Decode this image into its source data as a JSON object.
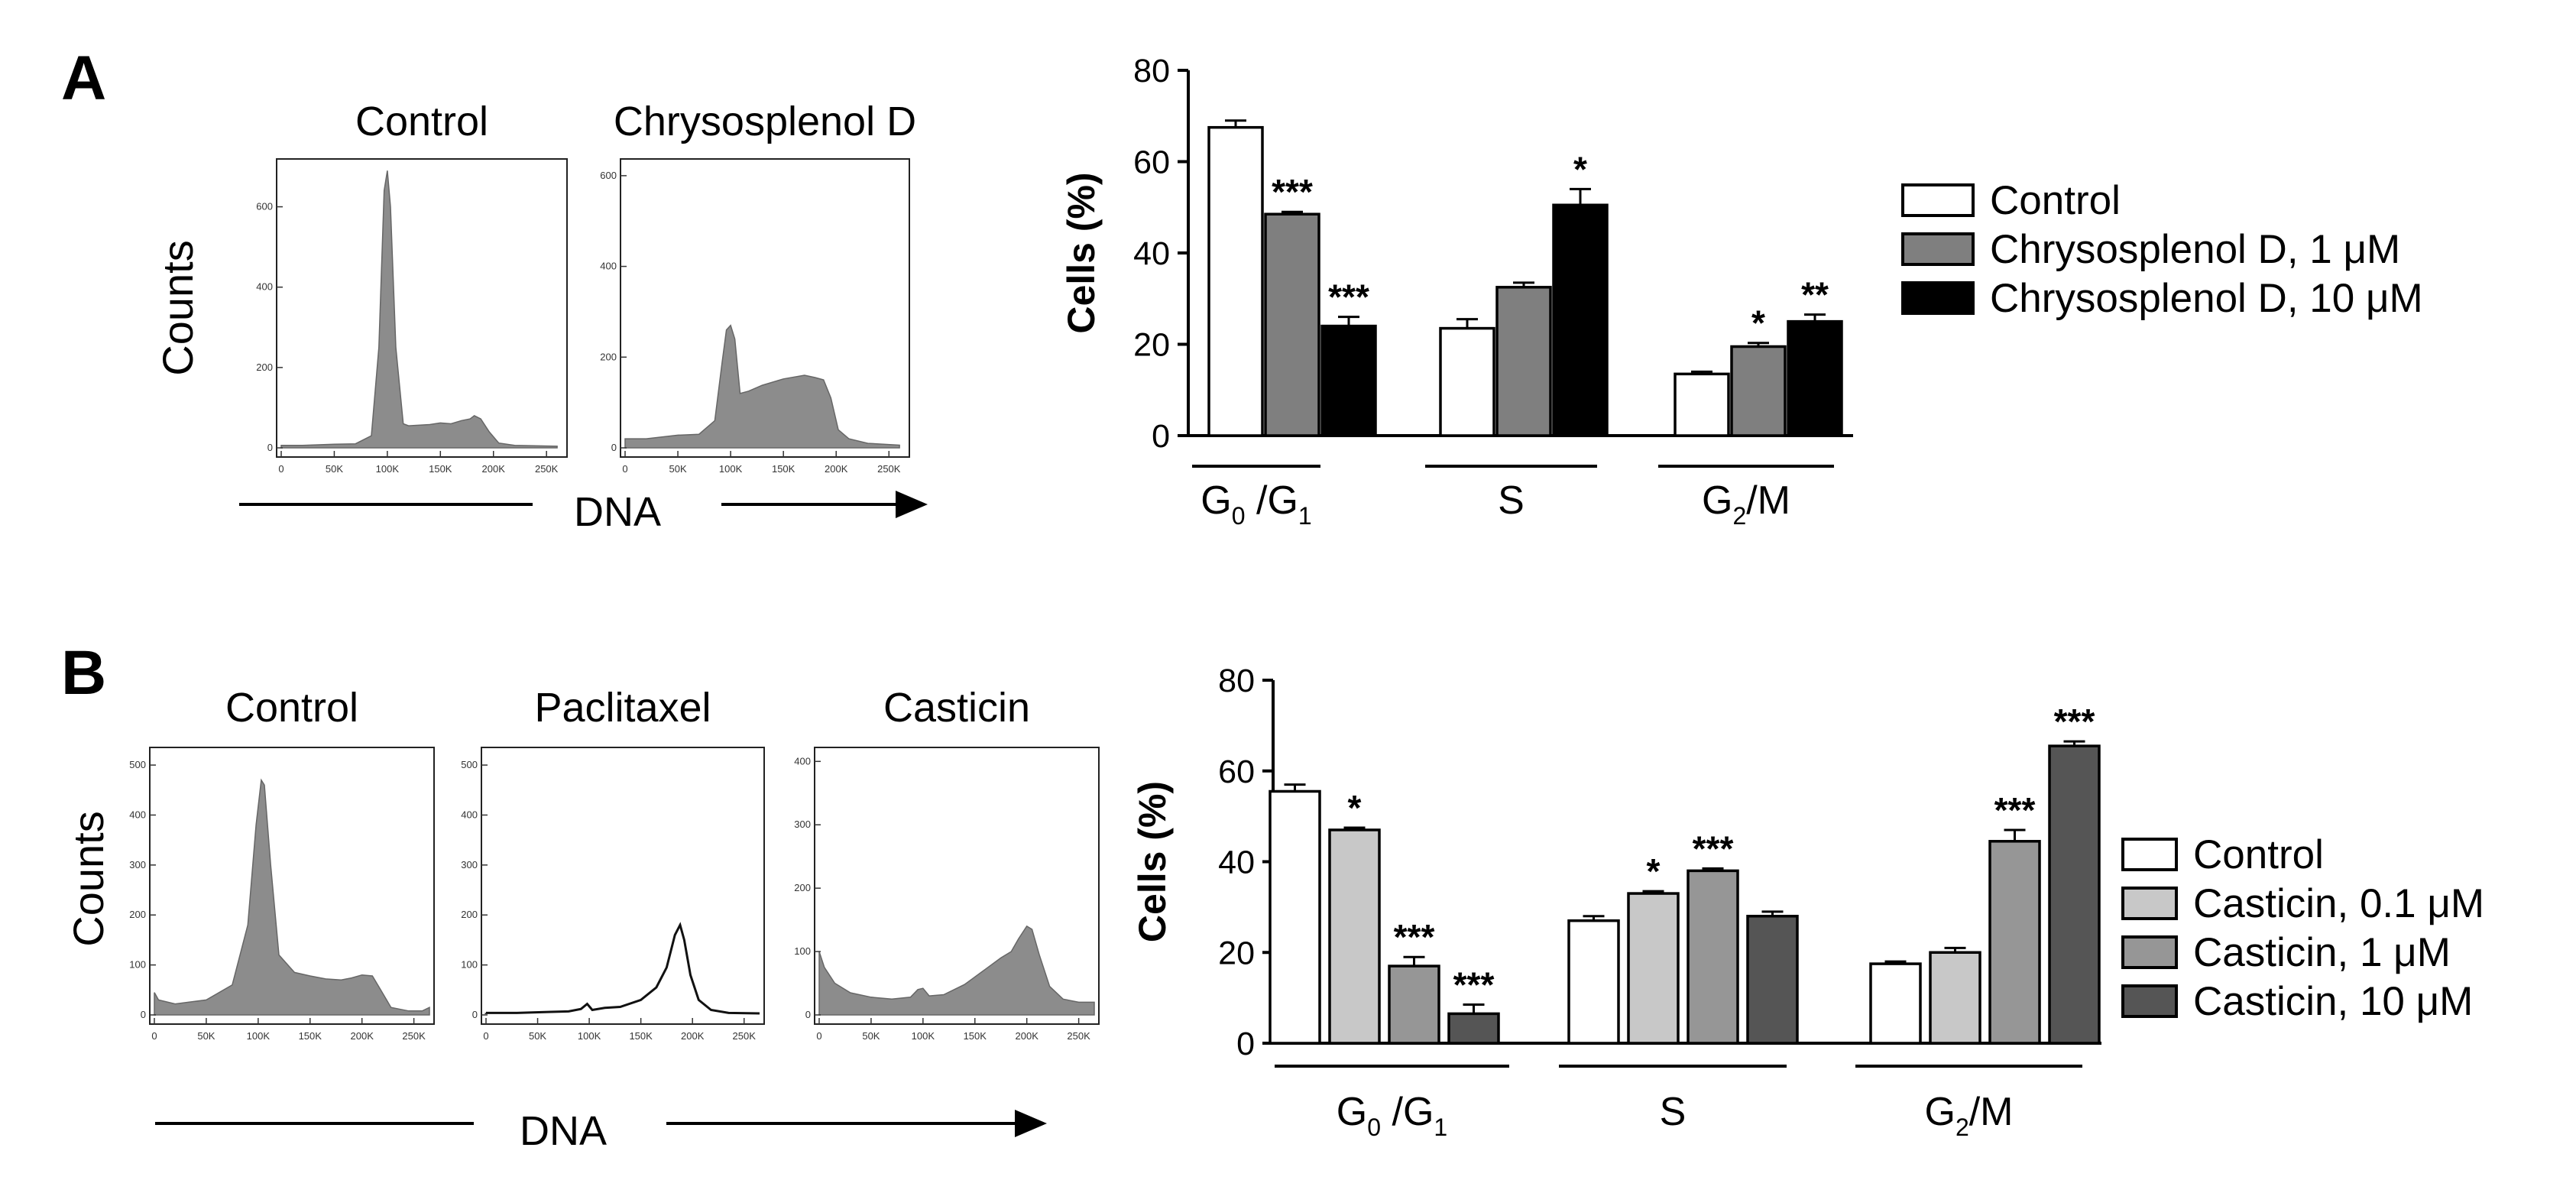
{
  "panels": [
    {
      "letter": "A"
    },
    {
      "letter": "B"
    }
  ],
  "histograms": [
    {
      "id": "A",
      "ylabel": "Counts",
      "xlabel": "DNA",
      "xticks": [
        "0",
        "50K",
        "100K",
        "150K",
        "200K",
        "250K"
      ],
      "plots": [
        {
          "title": "Control",
          "style": "filled",
          "ymax": 700,
          "yticks": [
            "0",
            "200",
            "400",
            "600"
          ],
          "profile": [
            [
              0,
              6
            ],
            [
              20,
              6
            ],
            [
              50,
              9
            ],
            [
              70,
              10
            ],
            [
              85,
              30
            ],
            [
              92,
              250
            ],
            [
              97,
              640
            ],
            [
              100,
              690
            ],
            [
              103,
              600
            ],
            [
              108,
              250
            ],
            [
              115,
              60
            ],
            [
              120,
              55
            ],
            [
              140,
              58
            ],
            [
              150,
              62
            ],
            [
              160,
              60
            ],
            [
              170,
              68
            ],
            [
              178,
              72
            ],
            [
              182,
              80
            ],
            [
              188,
              72
            ],
            [
              196,
              40
            ],
            [
              205,
              12
            ],
            [
              220,
              6
            ],
            [
              260,
              4
            ]
          ]
        },
        {
          "title": "Chrysosplenol D",
          "style": "filled",
          "ymax": 620,
          "yticks": [
            "0",
            "200",
            "400",
            "600"
          ],
          "profile": [
            [
              0,
              20
            ],
            [
              20,
              20
            ],
            [
              50,
              28
            ],
            [
              70,
              30
            ],
            [
              85,
              60
            ],
            [
              92,
              190
            ],
            [
              96,
              260
            ],
            [
              100,
              270
            ],
            [
              104,
              240
            ],
            [
              109,
              120
            ],
            [
              117,
              125
            ],
            [
              130,
              138
            ],
            [
              150,
              152
            ],
            [
              170,
              160
            ],
            [
              180,
              155
            ],
            [
              188,
              150
            ],
            [
              195,
              110
            ],
            [
              202,
              40
            ],
            [
              212,
              20
            ],
            [
              230,
              10
            ],
            [
              260,
              6
            ]
          ]
        }
      ]
    },
    {
      "id": "B",
      "ylabel": "Counts",
      "xlabel": "DNA",
      "xticks": [
        "0",
        "50K",
        "100K",
        "150K",
        "200K",
        "250K"
      ],
      "plots": [
        {
          "title": "Control",
          "style": "filled",
          "ymax": 520,
          "yticks": [
            "0",
            "100",
            "200",
            "300",
            "400",
            "500"
          ],
          "profile": [
            [
              0,
              45
            ],
            [
              4,
              30
            ],
            [
              20,
              22
            ],
            [
              50,
              30
            ],
            [
              75,
              60
            ],
            [
              90,
              180
            ],
            [
              98,
              380
            ],
            [
              103,
              470
            ],
            [
              106,
              460
            ],
            [
              112,
              300
            ],
            [
              120,
              120
            ],
            [
              135,
              85
            ],
            [
              150,
              78
            ],
            [
              165,
              72
            ],
            [
              180,
              70
            ],
            [
              190,
              74
            ],
            [
              200,
              80
            ],
            [
              210,
              78
            ],
            [
              218,
              50
            ],
            [
              228,
              15
            ],
            [
              245,
              8
            ],
            [
              258,
              8
            ],
            [
              265,
              15
            ]
          ]
        },
        {
          "title": "Paclitaxel",
          "style": "outline",
          "ymax": 520,
          "yticks": [
            "0",
            "100",
            "200",
            "300",
            "400",
            "500"
          ],
          "profile": [
            [
              0,
              4
            ],
            [
              30,
              4
            ],
            [
              60,
              6
            ],
            [
              80,
              7
            ],
            [
              92,
              12
            ],
            [
              98,
              22
            ],
            [
              103,
              10
            ],
            [
              115,
              14
            ],
            [
              130,
              16
            ],
            [
              150,
              30
            ],
            [
              165,
              55
            ],
            [
              175,
              95
            ],
            [
              183,
              160
            ],
            [
              188,
              180
            ],
            [
              192,
              150
            ],
            [
              198,
              80
            ],
            [
              206,
              30
            ],
            [
              218,
              10
            ],
            [
              235,
              4
            ],
            [
              265,
              3
            ]
          ]
        },
        {
          "title": "Casticin",
          "style": "filled",
          "ymax": 410,
          "yticks": [
            "0",
            "100",
            "200",
            "300",
            "400"
          ],
          "profile": [
            [
              0,
              100
            ],
            [
              5,
              75
            ],
            [
              15,
              50
            ],
            [
              30,
              35
            ],
            [
              50,
              28
            ],
            [
              70,
              25
            ],
            [
              88,
              28
            ],
            [
              95,
              40
            ],
            [
              100,
              42
            ],
            [
              106,
              30
            ],
            [
              120,
              32
            ],
            [
              140,
              48
            ],
            [
              160,
              72
            ],
            [
              175,
              90
            ],
            [
              185,
              100
            ],
            [
              192,
              120
            ],
            [
              200,
              140
            ],
            [
              205,
              135
            ],
            [
              212,
              95
            ],
            [
              222,
              45
            ],
            [
              235,
              25
            ],
            [
              250,
              20
            ],
            [
              265,
              20
            ]
          ]
        }
      ]
    }
  ],
  "chart_data": [
    {
      "type": "bar",
      "id": "A",
      "title": "",
      "xlabel": "",
      "ylabel": "Cells (%)",
      "ylim": [
        0,
        80
      ],
      "yticks": [
        "0",
        "20",
        "40",
        "60",
        "80"
      ],
      "categories": [
        "G0/G1",
        "S",
        "G2/M"
      ],
      "category_labels": [
        {
          "main": "G",
          "sub": "0",
          "sep": " /G",
          "sub2": "1"
        },
        {
          "main": "S",
          "sub": "",
          "sep": "",
          "sub2": ""
        },
        {
          "main": "G",
          "sub": "2",
          "sep": "/M",
          "sub2": ""
        }
      ],
      "series": [
        {
          "name": "Control",
          "color": "#ffffff",
          "values": [
            67.5,
            23.5,
            13.5
          ],
          "errors": [
            1.5,
            2.0,
            0.5
          ],
          "significance": [
            "",
            "",
            ""
          ]
        },
        {
          "name": "Chrysosplenol D, 1 μM",
          "color": "#7f7f7f",
          "values": [
            48.5,
            32.5,
            19.5
          ],
          "errors": [
            0.5,
            1.0,
            0.8
          ],
          "significance": [
            "***",
            "",
            "*"
          ]
        },
        {
          "name": "Chrysosplenol D, 10 μM",
          "color": "#000000",
          "values": [
            24.0,
            50.5,
            25.0
          ],
          "errors": [
            2.0,
            3.5,
            1.5
          ],
          "significance": [
            "***",
            "*",
            "**"
          ]
        }
      ],
      "legend_position": "right"
    },
    {
      "type": "bar",
      "id": "B",
      "title": "",
      "xlabel": "",
      "ylabel": "Cells (%)",
      "ylim": [
        0,
        80
      ],
      "yticks": [
        "0",
        "20",
        "40",
        "60",
        "80"
      ],
      "categories": [
        "G0/G1",
        "S",
        "G2/M"
      ],
      "category_labels": [
        {
          "main": "G",
          "sub": "0",
          "sep": " /G",
          "sub2": "1"
        },
        {
          "main": "S",
          "sub": "",
          "sep": "",
          "sub2": ""
        },
        {
          "main": "G",
          "sub": "2",
          "sep": "/M",
          "sub2": ""
        }
      ],
      "series": [
        {
          "name": "Control",
          "color": "#ffffff",
          "values": [
            55.5,
            27.0,
            17.5
          ],
          "errors": [
            1.5,
            1.0,
            0.5
          ],
          "significance": [
            "",
            "",
            ""
          ]
        },
        {
          "name": "Casticin, 0.1 μM",
          "color": "#c8c8c8",
          "values": [
            47.0,
            33.0,
            20.0
          ],
          "errors": [
            0.5,
            0.5,
            1.0
          ],
          "significance": [
            "*",
            "*",
            ""
          ]
        },
        {
          "name": "Casticin, 1 μM",
          "color": "#969696",
          "values": [
            17.0,
            38.0,
            44.5
          ],
          "errors": [
            2.0,
            0.5,
            2.5
          ],
          "significance": [
            "***",
            "***",
            "***"
          ]
        },
        {
          "name": "Casticin, 10 μM",
          "color": "#555555",
          "values": [
            6.5,
            28.0,
            65.5
          ],
          "errors": [
            2.0,
            1.0,
            1.0
          ],
          "significance": [
            "***",
            "",
            "***"
          ]
        }
      ],
      "legend_position": "right"
    }
  ]
}
